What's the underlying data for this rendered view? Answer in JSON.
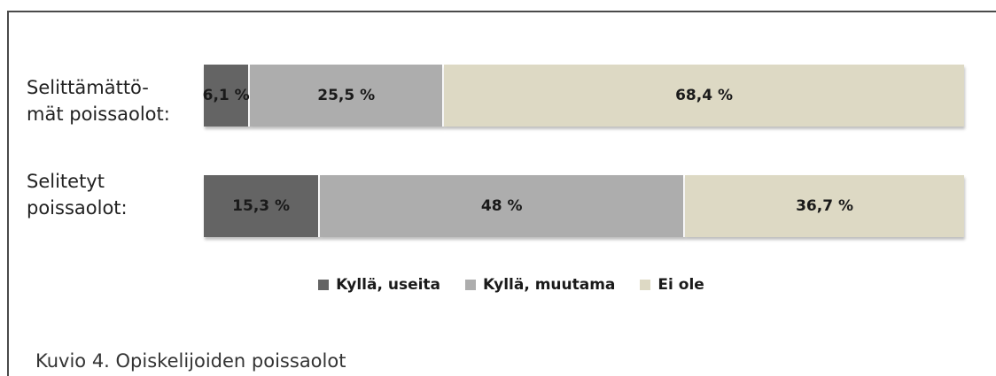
{
  "chart_data": {
    "type": "bar",
    "orientation": "horizontal",
    "stacked": true,
    "categories": [
      "Selittämättö-\nmät poissaolot:",
      "Selitetyt\npoissaolot:"
    ],
    "series": [
      {
        "name": "Kyllä, useita",
        "color": "#646464",
        "values": [
          6.1,
          15.3
        ],
        "labels": [
          "6,1 %",
          "15,3 %"
        ]
      },
      {
        "name": "Kyllä, muutama",
        "color": "#adadad",
        "values": [
          25.5,
          48
        ],
        "labels": [
          "25,5 %",
          "48 %"
        ]
      },
      {
        "name": "Ei ole",
        "color": "#ddd9c4",
        "values": [
          68.4,
          36.7
        ],
        "labels": [
          "68,4 %",
          "36,7 %"
        ]
      }
    ],
    "xlim": [
      0,
      100
    ],
    "legend_position": "bottom",
    "grid": false
  },
  "caption": "Kuvio  4. Opiskelijoiden poissaolot"
}
